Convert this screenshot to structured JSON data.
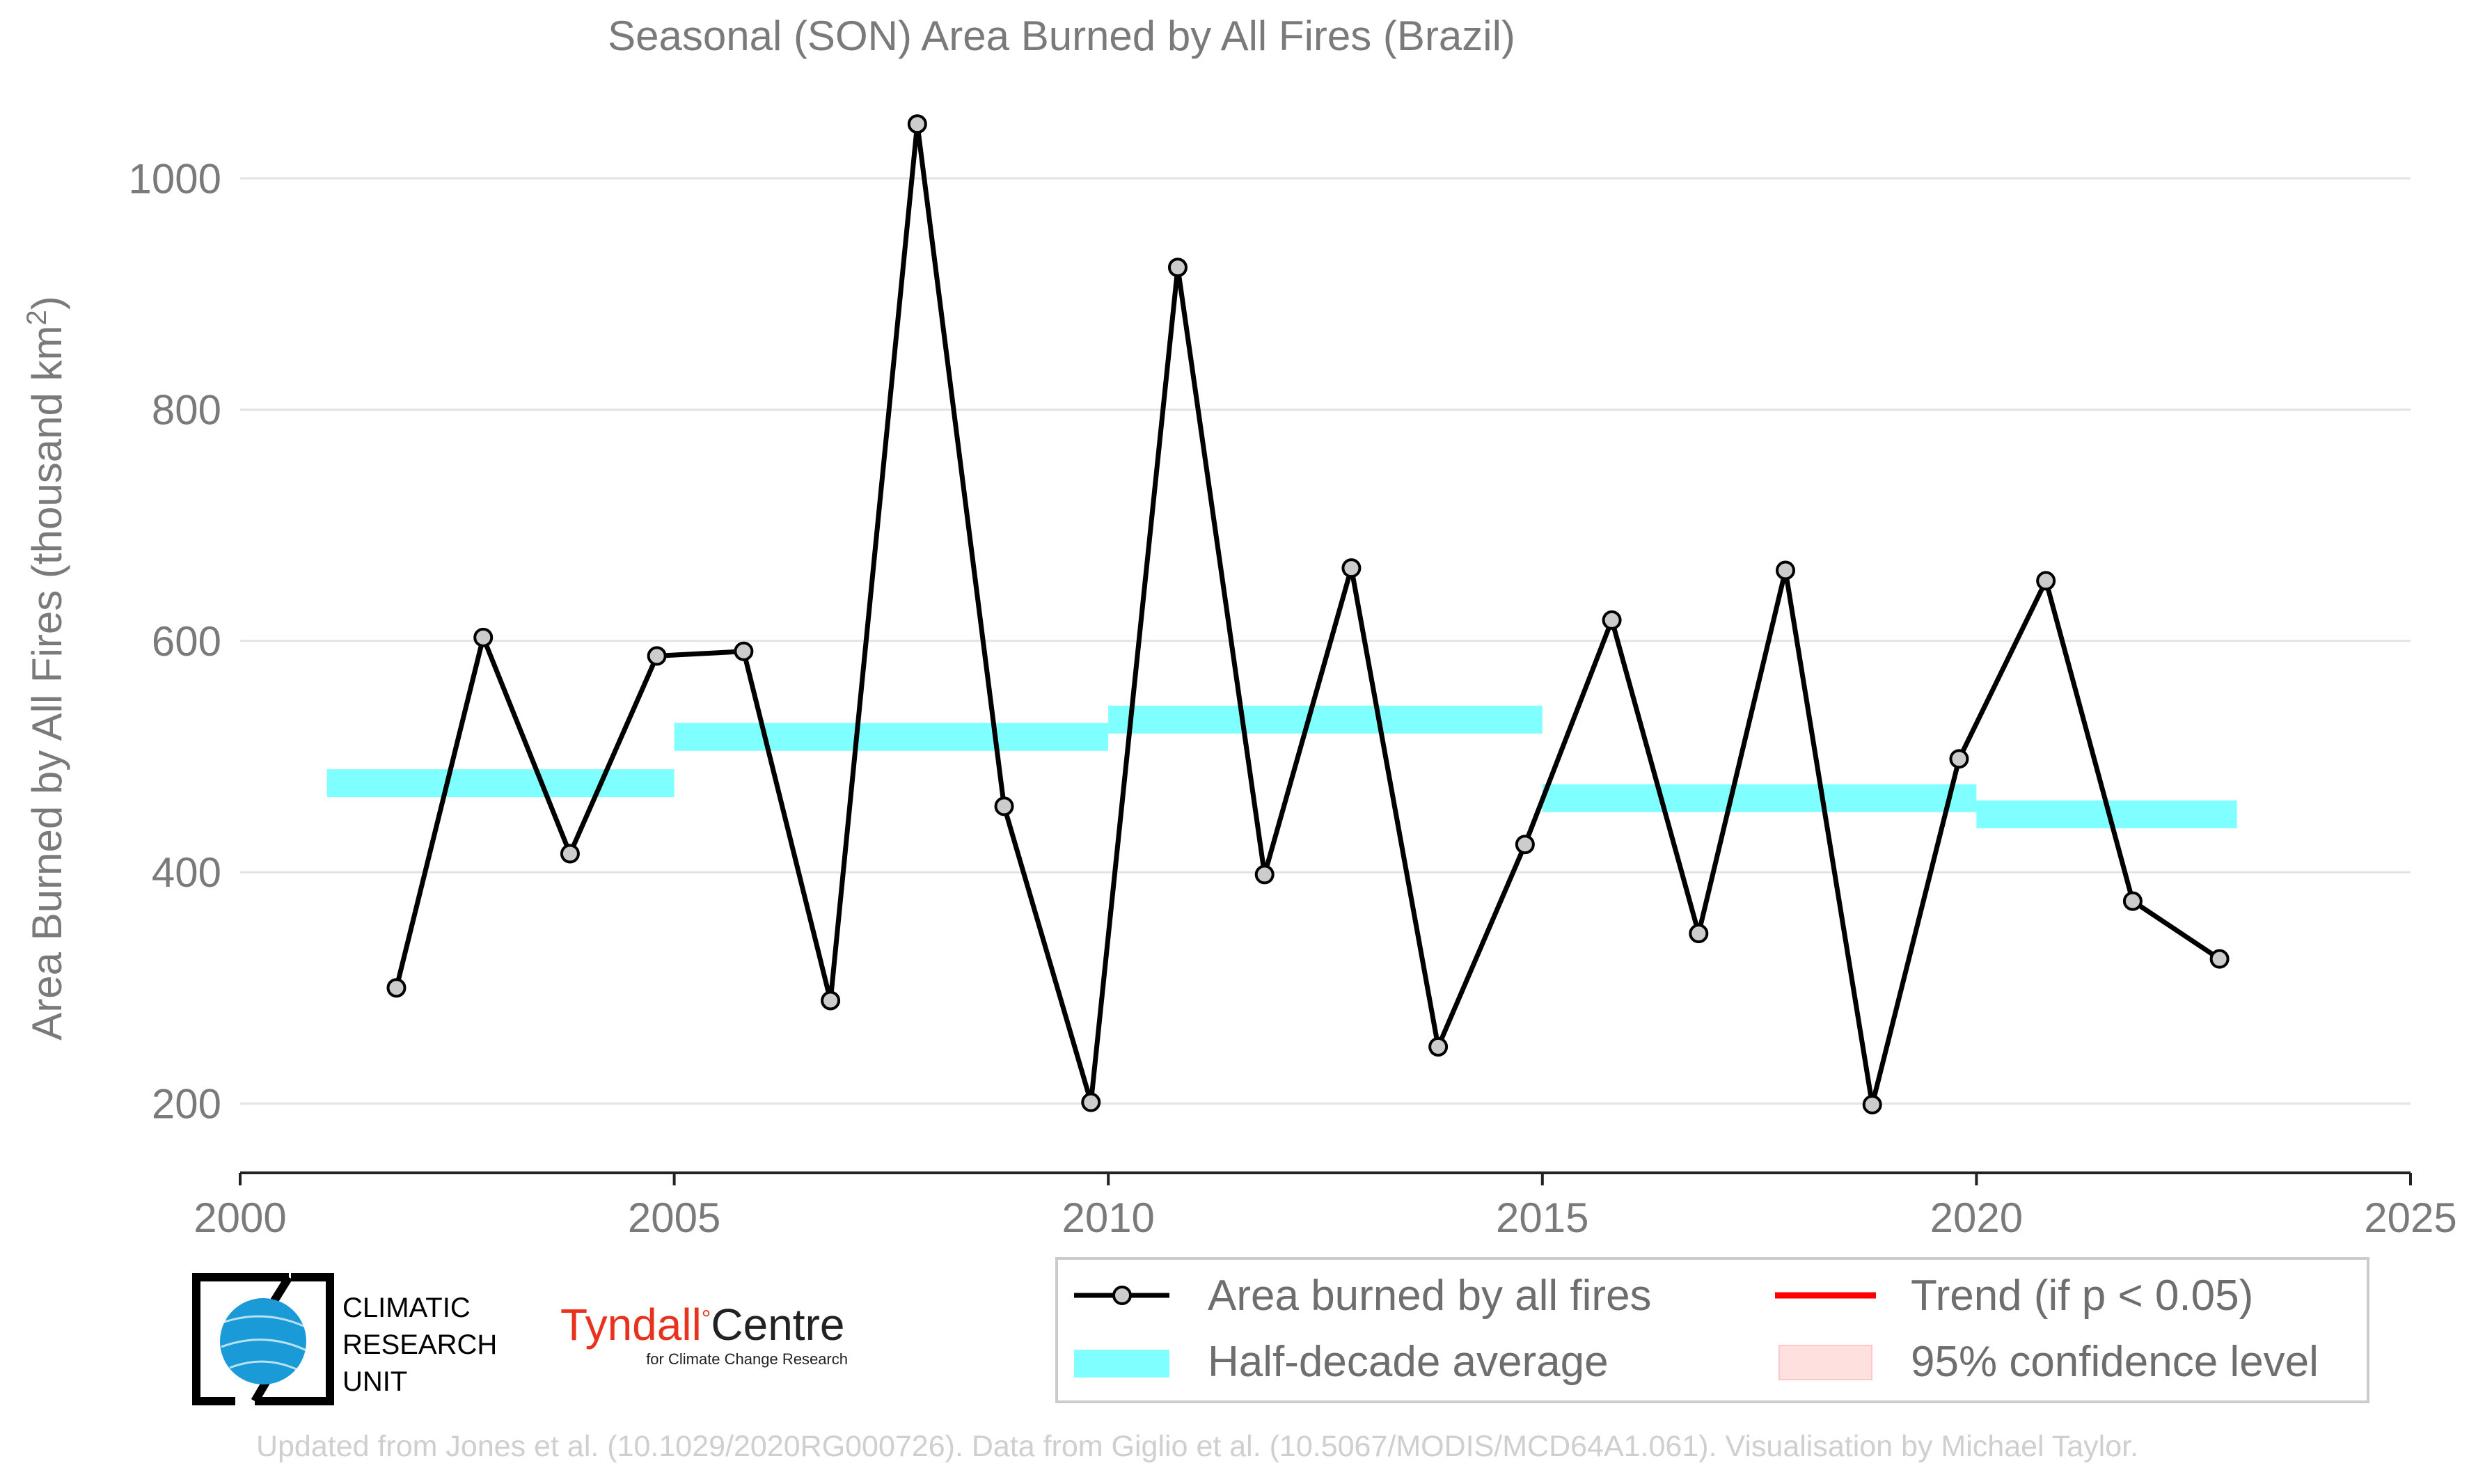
{
  "chart_data": {
    "type": "line",
    "title": "Seasonal (SON) Area Burned by All Fires (Brazil)",
    "ylabel": "Area Burned by All Fires (thousand km",
    "ylabel_sup": "2",
    "ylabel_end": ")",
    "xlim": [
      2000,
      2025
    ],
    "ylim": [
      140,
      1070
    ],
    "x_ticks": [
      2000,
      2005,
      2010,
      2015,
      2020,
      2025
    ],
    "y_ticks": [
      200,
      400,
      600,
      800,
      1000
    ],
    "grid": "horizontal",
    "legend_position": "bottom-right",
    "series": [
      {
        "name": "Area burned by all fires",
        "color": "#000000",
        "marker_fill": "#cccccc",
        "x": [
          2001.8,
          2002.8,
          2003.8,
          2004.8,
          2005.8,
          2006.8,
          2007.8,
          2008.8,
          2009.8,
          2010.8,
          2011.8,
          2012.8,
          2013.8,
          2014.8,
          2015.8,
          2016.8,
          2017.8,
          2018.8,
          2019.8,
          2020.8,
          2021.8,
          2022.8
        ],
        "y": [
          300,
          603,
          416,
          587,
          591,
          289,
          1047,
          457,
          201,
          923,
          398,
          663,
          249,
          424,
          618,
          347,
          661,
          199,
          498,
          652,
          375,
          325
        ]
      },
      {
        "name": "Half-decade average",
        "color": "#7fffff",
        "segments": [
          {
            "x0": 2001,
            "x1": 2005,
            "y": 477
          },
          {
            "x0": 2005,
            "x1": 2010,
            "y": 517
          },
          {
            "x0": 2010,
            "x1": 2015,
            "y": 532
          },
          {
            "x0": 2015,
            "x1": 2020,
            "y": 464
          },
          {
            "x0": 2020,
            "x1": 2023,
            "y": 450
          }
        ]
      }
    ],
    "legend": [
      {
        "label": "Area burned by all fires",
        "kind": "line-marker",
        "color": "#000000"
      },
      {
        "label": "Trend (if p < 0.05)",
        "kind": "line",
        "color": "#ff0000"
      },
      {
        "label": "Half-decade average",
        "kind": "band",
        "color": "#7fffff"
      },
      {
        "label": "95% confidence level",
        "kind": "patch",
        "color": "#ffe0e0"
      }
    ]
  },
  "logos": {
    "cru_lines": [
      "CLIMATIC",
      "RESEARCH",
      "UNIT"
    ],
    "tyndall_name": "Tyndall",
    "tyndall_centre": "Centre",
    "tyndall_sub": "for Climate Change Research",
    "tyndall_color": "#e8321e"
  },
  "footer": "Updated from Jones et al. (10.1029/2020RG000726). Data from Giglio et al. (10.5067/MODIS/MCD64A1.061). Visualisation by Michael Taylor."
}
